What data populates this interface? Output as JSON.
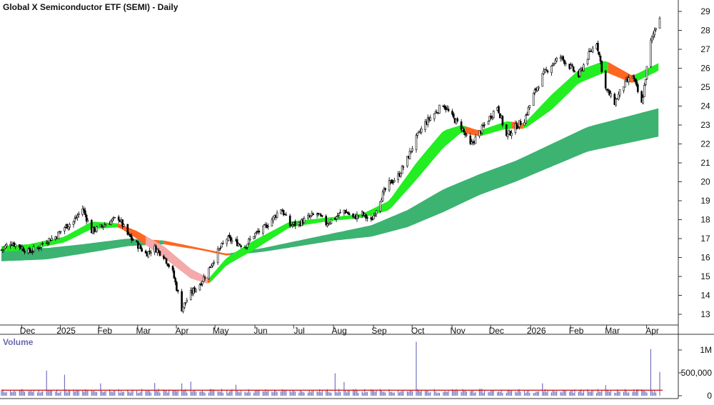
{
  "chart_data": {
    "type": "candlestick",
    "title": "Global X Semiconductor ETF (SEMI) - Daily",
    "x_labels": [
      "Dec",
      "2025",
      "Feb",
      "Mar",
      "Apr",
      "May",
      "Jun",
      "Jul",
      "Aug",
      "Sep",
      "Oct",
      "Nov",
      "Dec",
      "2026",
      "Feb",
      "Mar",
      "Apr"
    ],
    "y_ticks": [
      13,
      14,
      15,
      16,
      17,
      18,
      19,
      20,
      21,
      22,
      23,
      24,
      25,
      26,
      27,
      28,
      29
    ],
    "ylim": [
      12.4,
      29.5
    ],
    "grid": false,
    "colors": {
      "up": "#ffffff",
      "down": "#000000",
      "short_band_up": "#22ee22",
      "short_band_down": "#ff6622",
      "short_band_down_light": "#f4aaaa",
      "long_band_up": "#3cb371",
      "long_band_down": "#ff6622",
      "volume_bar": "#6666bb",
      "volume_avg": "#cc2222"
    },
    "series": [
      {
        "name": "price",
        "points": [
          {
            "x": "2024-11-18",
            "y": 16.4
          },
          {
            "x": "2024-11-25",
            "y": 16.8
          },
          {
            "x": "2024-12-02",
            "y": 16.6
          },
          {
            "x": "2024-12-09",
            "y": 16.3
          },
          {
            "x": "2024-12-16",
            "y": 16.5
          },
          {
            "x": "2024-12-23",
            "y": 16.9
          },
          {
            "x": "2024-12-30",
            "y": 17.1
          },
          {
            "x": "2025-01-06",
            "y": 17.6
          },
          {
            "x": "2025-01-13",
            "y": 17.9
          },
          {
            "x": "2025-01-20",
            "y": 18.6
          },
          {
            "x": "2025-01-27",
            "y": 17.4
          },
          {
            "x": "2025-02-03",
            "y": 17.6
          },
          {
            "x": "2025-02-10",
            "y": 17.9
          },
          {
            "x": "2025-02-17",
            "y": 18.1
          },
          {
            "x": "2025-02-24",
            "y": 17.2
          },
          {
            "x": "2025-03-03",
            "y": 16.7
          },
          {
            "x": "2025-03-10",
            "y": 16.2
          },
          {
            "x": "2025-03-17",
            "y": 16.5
          },
          {
            "x": "2025-03-24",
            "y": 16.1
          },
          {
            "x": "2025-03-31",
            "y": 15.2
          },
          {
            "x": "2025-04-07",
            "y": 13.3
          },
          {
            "x": "2025-04-14",
            "y": 14.1
          },
          {
            "x": "2025-04-21",
            "y": 14.6
          },
          {
            "x": "2025-04-28",
            "y": 15.4
          },
          {
            "x": "2025-05-05",
            "y": 16.3
          },
          {
            "x": "2025-05-12",
            "y": 17.0
          },
          {
            "x": "2025-05-19",
            "y": 16.8
          },
          {
            "x": "2025-05-26",
            "y": 16.6
          },
          {
            "x": "2025-06-02",
            "y": 17.2
          },
          {
            "x": "2025-06-09",
            "y": 17.5
          },
          {
            "x": "2025-06-16",
            "y": 18.0
          },
          {
            "x": "2025-06-23",
            "y": 18.6
          },
          {
            "x": "2025-06-30",
            "y": 17.7
          },
          {
            "x": "2025-07-07",
            "y": 17.8
          },
          {
            "x": "2025-07-14",
            "y": 18.1
          },
          {
            "x": "2025-07-21",
            "y": 18.3
          },
          {
            "x": "2025-07-28",
            "y": 17.8
          },
          {
            "x": "2025-08-04",
            "y": 18.1
          },
          {
            "x": "2025-08-11",
            "y": 18.5
          },
          {
            "x": "2025-08-18",
            "y": 18.1
          },
          {
            "x": "2025-08-25",
            "y": 18.3
          },
          {
            "x": "2025-09-01",
            "y": 17.9
          },
          {
            "x": "2025-09-08",
            "y": 19.1
          },
          {
            "x": "2025-09-15",
            "y": 19.9
          },
          {
            "x": "2025-09-22",
            "y": 20.3
          },
          {
            "x": "2025-09-29",
            "y": 21.2
          },
          {
            "x": "2025-10-06",
            "y": 22.3
          },
          {
            "x": "2025-10-13",
            "y": 23.1
          },
          {
            "x": "2025-10-20",
            "y": 23.6
          },
          {
            "x": "2025-10-27",
            "y": 24.1
          },
          {
            "x": "2025-11-03",
            "y": 23.4
          },
          {
            "x": "2025-11-10",
            "y": 22.9
          },
          {
            "x": "2025-11-17",
            "y": 21.9
          },
          {
            "x": "2025-11-24",
            "y": 22.6
          },
          {
            "x": "2025-12-01",
            "y": 23.3
          },
          {
            "x": "2025-12-08",
            "y": 24.0
          },
          {
            "x": "2025-12-15",
            "y": 22.4
          },
          {
            "x": "2025-12-22",
            "y": 22.9
          },
          {
            "x": "2025-12-29",
            "y": 23.3
          },
          {
            "x": "2026-01-05",
            "y": 24.6
          },
          {
            "x": "2026-01-12",
            "y": 25.6
          },
          {
            "x": "2026-01-19",
            "y": 26.2
          },
          {
            "x": "2026-01-26",
            "y": 26.6
          },
          {
            "x": "2026-02-02",
            "y": 26.1
          },
          {
            "x": "2026-02-09",
            "y": 25.6
          },
          {
            "x": "2026-02-16",
            "y": 26.6
          },
          {
            "x": "2026-02-23",
            "y": 27.4
          },
          {
            "x": "2026-03-02",
            "y": 24.9
          },
          {
            "x": "2026-03-09",
            "y": 24.2
          },
          {
            "x": "2026-03-16",
            "y": 25.1
          },
          {
            "x": "2026-03-23",
            "y": 25.6
          },
          {
            "x": "2026-03-30",
            "y": 24.1
          },
          {
            "x": "2026-04-06",
            "y": 27.4
          },
          {
            "x": "2026-04-13",
            "y": 28.8
          }
        ]
      },
      {
        "name": "short_band_upper",
        "points": [
          {
            "x": "2024-11-18",
            "y": 16.6
          },
          {
            "x": "2024-12-09",
            "y": 16.7
          },
          {
            "x": "2025-01-06",
            "y": 17.1
          },
          {
            "x": "2025-01-27",
            "y": 17.9
          },
          {
            "x": "2025-02-17",
            "y": 17.8
          },
          {
            "x": "2025-03-03",
            "y": 17.4
          },
          {
            "x": "2025-03-24",
            "y": 16.6
          },
          {
            "x": "2025-04-14",
            "y": 15.4
          },
          {
            "x": "2025-04-28",
            "y": 14.9
          },
          {
            "x": "2025-05-12",
            "y": 16.0
          },
          {
            "x": "2025-06-02",
            "y": 16.9
          },
          {
            "x": "2025-06-30",
            "y": 17.9
          },
          {
            "x": "2025-07-28",
            "y": 18.1
          },
          {
            "x": "2025-08-25",
            "y": 18.3
          },
          {
            "x": "2025-09-15",
            "y": 19.0
          },
          {
            "x": "2025-10-06",
            "y": 21.0
          },
          {
            "x": "2025-10-27",
            "y": 22.7
          },
          {
            "x": "2025-11-10",
            "y": 23.0
          },
          {
            "x": "2025-11-24",
            "y": 22.7
          },
          {
            "x": "2025-12-15",
            "y": 23.2
          },
          {
            "x": "2025-12-29",
            "y": 23.1
          },
          {
            "x": "2026-01-19",
            "y": 24.6
          },
          {
            "x": "2026-02-09",
            "y": 25.9
          },
          {
            "x": "2026-03-02",
            "y": 26.4
          },
          {
            "x": "2026-03-23",
            "y": 25.6
          },
          {
            "x": "2026-04-13",
            "y": 26.3
          }
        ]
      },
      {
        "name": "short_band_lower",
        "points": [
          {
            "x": "2024-11-18",
            "y": 16.3
          },
          {
            "x": "2024-12-09",
            "y": 16.4
          },
          {
            "x": "2025-01-06",
            "y": 16.8
          },
          {
            "x": "2025-01-27",
            "y": 17.5
          },
          {
            "x": "2025-02-17",
            "y": 17.6
          },
          {
            "x": "2025-03-03",
            "y": 17.0
          },
          {
            "x": "2025-03-24",
            "y": 16.0
          },
          {
            "x": "2025-04-14",
            "y": 14.9
          },
          {
            "x": "2025-04-28",
            "y": 14.6
          },
          {
            "x": "2025-05-12",
            "y": 15.6
          },
          {
            "x": "2025-06-02",
            "y": 16.4
          },
          {
            "x": "2025-06-30",
            "y": 17.6
          },
          {
            "x": "2025-07-28",
            "y": 17.9
          },
          {
            "x": "2025-08-25",
            "y": 18.1
          },
          {
            "x": "2025-09-15",
            "y": 18.5
          },
          {
            "x": "2025-10-06",
            "y": 20.1
          },
          {
            "x": "2025-10-27",
            "y": 21.8
          },
          {
            "x": "2025-11-10",
            "y": 22.6
          },
          {
            "x": "2025-11-24",
            "y": 22.4
          },
          {
            "x": "2025-12-15",
            "y": 22.8
          },
          {
            "x": "2025-12-29",
            "y": 22.8
          },
          {
            "x": "2026-01-19",
            "y": 23.8
          },
          {
            "x": "2026-02-09",
            "y": 25.2
          },
          {
            "x": "2026-03-02",
            "y": 25.8
          },
          {
            "x": "2026-03-23",
            "y": 25.2
          },
          {
            "x": "2026-04-13",
            "y": 25.9
          }
        ]
      },
      {
        "name": "long_band_upper",
        "points": [
          {
            "x": "2024-11-18",
            "y": 16.5
          },
          {
            "x": "2024-12-23",
            "y": 16.5
          },
          {
            "x": "2025-01-20",
            "y": 16.7
          },
          {
            "x": "2025-02-24",
            "y": 17.0
          },
          {
            "x": "2025-03-24",
            "y": 16.9
          },
          {
            "x": "2025-04-21",
            "y": 16.5
          },
          {
            "x": "2025-05-12",
            "y": 16.2
          },
          {
            "x": "2025-06-09",
            "y": 16.5
          },
          {
            "x": "2025-07-07",
            "y": 16.9
          },
          {
            "x": "2025-08-04",
            "y": 17.3
          },
          {
            "x": "2025-09-01",
            "y": 17.7
          },
          {
            "x": "2025-09-29",
            "y": 18.5
          },
          {
            "x": "2025-10-27",
            "y": 19.6
          },
          {
            "x": "2025-11-24",
            "y": 20.4
          },
          {
            "x": "2025-12-22",
            "y": 21.1
          },
          {
            "x": "2026-01-19",
            "y": 22.0
          },
          {
            "x": "2026-02-16",
            "y": 22.9
          },
          {
            "x": "2026-03-16",
            "y": 23.4
          },
          {
            "x": "2026-04-13",
            "y": 23.9
          }
        ]
      },
      {
        "name": "long_band_lower",
        "points": [
          {
            "x": "2024-11-18",
            "y": 15.8
          },
          {
            "x": "2024-12-23",
            "y": 15.9
          },
          {
            "x": "2025-01-20",
            "y": 16.2
          },
          {
            "x": "2025-02-24",
            "y": 16.6
          },
          {
            "x": "2025-03-24",
            "y": 16.7
          },
          {
            "x": "2025-04-21",
            "y": 16.4
          },
          {
            "x": "2025-05-12",
            "y": 16.1
          },
          {
            "x": "2025-06-09",
            "y": 16.3
          },
          {
            "x": "2025-07-07",
            "y": 16.6
          },
          {
            "x": "2025-08-04",
            "y": 16.9
          },
          {
            "x": "2025-09-01",
            "y": 17.1
          },
          {
            "x": "2025-09-29",
            "y": 17.6
          },
          {
            "x": "2025-10-27",
            "y": 18.4
          },
          {
            "x": "2025-11-24",
            "y": 19.3
          },
          {
            "x": "2025-12-22",
            "y": 20.0
          },
          {
            "x": "2026-01-19",
            "y": 20.8
          },
          {
            "x": "2026-02-16",
            "y": 21.6
          },
          {
            "x": "2026-03-16",
            "y": 22.0
          },
          {
            "x": "2026-04-13",
            "y": 22.4
          }
        ]
      }
    ],
    "volume": {
      "label": "Volume",
      "y_ticks": [
        {
          "value": 0,
          "label": "0"
        },
        {
          "value": 500000,
          "label": "500,000"
        },
        {
          "value": 1000000,
          "label": "1M"
        }
      ],
      "ylim": [
        0,
        1170000
      ],
      "average": 120000,
      "spikes": [
        {
          "x": "2024-12-23",
          "y": 550000
        },
        {
          "x": "2025-01-06",
          "y": 460000
        },
        {
          "x": "2025-02-03",
          "y": 270000
        },
        {
          "x": "2025-03-17",
          "y": 280000
        },
        {
          "x": "2025-04-07",
          "y": 270000
        },
        {
          "x": "2025-04-14",
          "y": 310000
        },
        {
          "x": "2025-05-19",
          "y": 240000
        },
        {
          "x": "2025-08-04",
          "y": 490000
        },
        {
          "x": "2025-08-11",
          "y": 300000
        },
        {
          "x": "2025-10-06",
          "y": 1180000
        },
        {
          "x": "2026-01-12",
          "y": 270000
        },
        {
          "x": "2026-03-02",
          "y": 230000
        },
        {
          "x": "2026-04-06",
          "y": 1020000
        },
        {
          "x": "2026-04-13",
          "y": 520000
        }
      ]
    }
  }
}
